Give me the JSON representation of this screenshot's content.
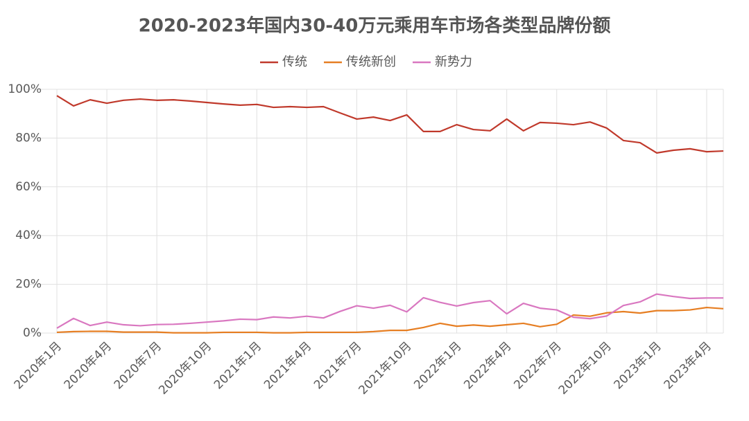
{
  "chart_data": {
    "type": "line",
    "title": "2020-2023年国内30-40万元乘用车市场各类型品牌份额",
    "categories": [
      "2020年1月",
      null,
      null,
      "2020年4月",
      null,
      null,
      "2020年7月",
      null,
      null,
      "2020年10月",
      null,
      null,
      "2021年1月",
      null,
      null,
      "2021年4月",
      null,
      null,
      "2021年7月",
      null,
      null,
      "2021年10月",
      null,
      null,
      "2022年1月",
      null,
      null,
      "2022年4月",
      null,
      null,
      "2022年7月",
      null,
      null,
      "2022年10月",
      null,
      null,
      "2023年1月",
      null,
      null,
      "2023年4月",
      null
    ],
    "series": [
      {
        "name": "传统",
        "color": "#c0392b",
        "values": [
          97.4,
          93.2,
          95.7,
          94.3,
          95.5,
          96,
          95.5,
          95.7,
          95.2,
          94.6,
          94,
          93.5,
          93.8,
          92.6,
          92.9,
          92.6,
          92.9,
          90.3,
          87.8,
          88.6,
          87.2,
          89.5,
          82.7,
          82.7,
          85.5,
          83.5,
          83,
          87.8,
          83,
          86.4,
          86.1,
          85.5,
          86.6,
          84.1,
          79,
          78.1,
          73.9,
          75,
          75.6,
          74.4,
          74.7
        ]
      },
      {
        "name": "传统新创",
        "color": "#e67e22",
        "values": [
          0.3,
          0.6,
          0.7,
          0.7,
          0.4,
          0.4,
          0.4,
          0.1,
          0.1,
          0.1,
          0.3,
          0.3,
          0.3,
          0.1,
          0.1,
          0.3,
          0.3,
          0.3,
          0.3,
          0.6,
          1.1,
          1.1,
          2.3,
          4.0,
          2.8,
          3.3,
          2.8,
          3.4,
          4.0,
          2.6,
          3.6,
          7.4,
          6.9,
          8.3,
          8.8,
          8.2,
          9.2,
          9.2,
          9.5,
          10.5,
          10
        ]
      },
      {
        "name": "新势力",
        "color": "#d977c0",
        "values": [
          2.0,
          6.0,
          3.1,
          4.5,
          3.4,
          3.0,
          3.5,
          3.6,
          4.0,
          4.5,
          5.0,
          5.7,
          5.5,
          6.6,
          6.2,
          6.9,
          6.2,
          8.9,
          11.2,
          10.2,
          11.4,
          8.7,
          14.5,
          12.6,
          11.1,
          12.5,
          13.3,
          7.9,
          12.2,
          10.2,
          9.5,
          6.5,
          5.9,
          7.0,
          11.3,
          12.8,
          16.0,
          15.0,
          14.2,
          14.4,
          14.4
        ]
      }
    ],
    "ylim": [
      0,
      100
    ],
    "yticks": [
      {
        "value": 0,
        "label": "0%"
      },
      {
        "value": 20,
        "label": "20%"
      },
      {
        "value": 40,
        "label": "40%"
      },
      {
        "value": 60,
        "label": "60%"
      },
      {
        "value": 80,
        "label": "80%"
      },
      {
        "value": 100,
        "label": "100%"
      }
    ],
    "grid": true,
    "legend": "top"
  }
}
